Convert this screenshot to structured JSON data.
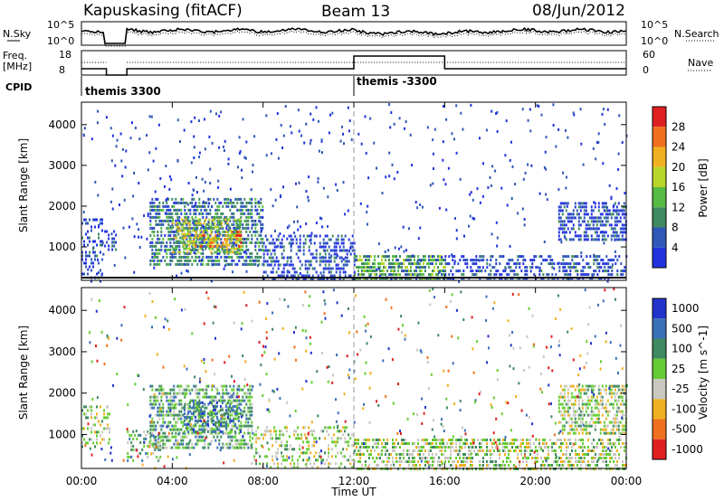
{
  "header": {
    "station": "Kapuskasing (fitACF)",
    "beam": "Beam 13",
    "date": "08/Jun/2012"
  },
  "summary_panels": {
    "nsky_label": "N.Sky",
    "nsearch_label": "N.Search",
    "nsky_ticks": [
      "10^5",
      "10^0"
    ],
    "nsearch_ticks": [
      "10^5",
      "10^0"
    ],
    "freq_label_1": "Freq.",
    "freq_label_2": "[MHz]",
    "freq_ticks": [
      "18",
      "8"
    ],
    "nave_label": "Nave",
    "nave_ticks": [
      "60",
      "0"
    ],
    "cpid_label": "CPID",
    "cpid_segments": [
      {
        "label": "themis 3300",
        "start_hour": 0,
        "end_hour": 12
      },
      {
        "label": "themis -3300",
        "start_hour": 12,
        "end_hour": 24
      }
    ]
  },
  "colors": {
    "power": [
      "#2233dd",
      "#2f58b8",
      "#3f8a60",
      "#55bb44",
      "#b8d52a",
      "#f0b020",
      "#f07020",
      "#e02020"
    ],
    "velocity": [
      "#2233cc",
      "#3a70b8",
      "#3f8a60",
      "#66cc33",
      "#c8c8c0",
      "#f0b020",
      "#f07020",
      "#e02020"
    ]
  },
  "chart_data": [
    {
      "type": "heatmap",
      "panel": "power",
      "ylabel": "Slant Range [km]",
      "xlabel": "Time UT",
      "xlim_hours": [
        0,
        24
      ],
      "ylim_km": [
        180,
        4550
      ],
      "y_ticks": [
        "1000",
        "2000",
        "3000",
        "4000"
      ],
      "x_ticks": [
        "00:00",
        "04:00",
        "08:00",
        "12:00",
        "16:00",
        "20:00",
        "00:00"
      ],
      "colorbar_title": "Power [dB]",
      "colorbar_ticks": [
        "28",
        "24",
        "20",
        "16",
        "12",
        "8",
        "4"
      ],
      "regions": [
        {
          "t0": 0.0,
          "t1": 0.9,
          "r0": 180,
          "r1": 1700,
          "level": 1,
          "density": 0.35
        },
        {
          "t0": 1.0,
          "t1": 1.5,
          "r0": 900,
          "r1": 1500,
          "level": 1,
          "density": 0.5
        },
        {
          "t0": 3.0,
          "t1": 8.0,
          "r0": 600,
          "r1": 2200,
          "level": 2,
          "density": 0.6
        },
        {
          "t0": 4.0,
          "t1": 7.0,
          "r0": 900,
          "r1": 1700,
          "level": 4,
          "density": 0.6
        },
        {
          "t0": 5.0,
          "t1": 7.0,
          "r0": 1000,
          "r1": 1400,
          "level": 6,
          "density": 0.4
        },
        {
          "t0": 8.0,
          "t1": 12.0,
          "r0": 180,
          "r1": 1300,
          "level": 1,
          "density": 0.45
        },
        {
          "t0": 12.0,
          "t1": 16.0,
          "r0": 180,
          "r1": 800,
          "level": 3,
          "density": 0.7
        },
        {
          "t0": 16.0,
          "t1": 24.0,
          "r0": 180,
          "r1": 800,
          "level": 1,
          "density": 0.45
        },
        {
          "t0": 21.0,
          "t1": 24.0,
          "r0": 1200,
          "r1": 2100,
          "level": 1,
          "density": 0.6
        }
      ]
    },
    {
      "type": "heatmap",
      "panel": "velocity",
      "ylabel": "Slant Range [km]",
      "xlabel": "Time UT",
      "xlim_hours": [
        0,
        24
      ],
      "ylim_km": [
        180,
        4550
      ],
      "y_ticks": [
        "1000",
        "2000",
        "3000",
        "4000"
      ],
      "x_ticks": [
        "00:00",
        "04:00",
        "08:00",
        "12:00",
        "16:00",
        "20:00",
        "00:00"
      ],
      "colorbar_title": "Velocity [m s^-1]",
      "colorbar_ticks": [
        "1000",
        "500",
        "100",
        "25",
        "-25",
        "-100",
        "-500",
        "-1000"
      ],
      "regions": [
        {
          "t0": 0.0,
          "t1": 1.2,
          "r0": 700,
          "r1": 1700,
          "level": 4,
          "density": 0.4
        },
        {
          "t0": 2.0,
          "t1": 3.5,
          "r0": 400,
          "r1": 1100,
          "level": 3,
          "density": 0.35
        },
        {
          "t0": 3.0,
          "t1": 7.5,
          "r0": 700,
          "r1": 2200,
          "level": 3,
          "density": 0.6
        },
        {
          "t0": 4.5,
          "t1": 7.0,
          "r0": 1100,
          "r1": 1800,
          "level": 2,
          "density": 0.4
        },
        {
          "t0": 7.5,
          "t1": 12.0,
          "r0": 180,
          "r1": 1200,
          "level": 4,
          "density": 0.3
        },
        {
          "t0": 12.0,
          "t1": 24.0,
          "r0": 180,
          "r1": 900,
          "level": 4,
          "density": 0.55
        },
        {
          "t0": 21.0,
          "t1": 24.0,
          "r0": 1000,
          "r1": 2200,
          "level": 4,
          "density": 0.6
        }
      ]
    }
  ]
}
